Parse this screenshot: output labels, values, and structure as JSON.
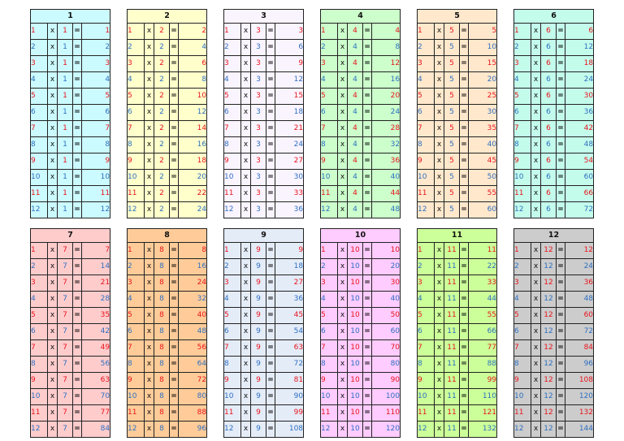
{
  "tables": [
    {
      "title": "1",
      "color": "#ccfbff",
      "rows": [
        [
          "1",
          "x",
          "1",
          "=",
          "1"
        ],
        [
          "2",
          "x",
          "1",
          "=",
          "2"
        ],
        [
          "3",
          "x",
          "1",
          "=",
          "3"
        ],
        [
          "4",
          "x",
          "1",
          "=",
          "4"
        ],
        [
          "5",
          "x",
          "1",
          "=",
          "5"
        ],
        [
          "6",
          "x",
          "1",
          "=",
          "6"
        ],
        [
          "7",
          "x",
          "1",
          "=",
          "7"
        ],
        [
          "8",
          "x",
          "1",
          "=",
          "8"
        ],
        [
          "9",
          "x",
          "1",
          "=",
          "9"
        ],
        [
          "10",
          "x",
          "1",
          "=",
          "10"
        ],
        [
          "11",
          "x",
          "1",
          "=",
          "11"
        ],
        [
          "12",
          "x",
          "1",
          "=",
          "12"
        ]
      ]
    },
    {
      "title": "2",
      "color": "#ffffcc",
      "rows": [
        [
          "1",
          "x",
          "2",
          "=",
          "2"
        ],
        [
          "2",
          "x",
          "2",
          "=",
          "4"
        ],
        [
          "3",
          "x",
          "2",
          "=",
          "6"
        ],
        [
          "4",
          "x",
          "2",
          "=",
          "8"
        ],
        [
          "5",
          "x",
          "2",
          "=",
          "10"
        ],
        [
          "6",
          "x",
          "2",
          "=",
          "12"
        ],
        [
          "7",
          "x",
          "2",
          "=",
          "14"
        ],
        [
          "8",
          "x",
          "2",
          "=",
          "16"
        ],
        [
          "9",
          "x",
          "2",
          "=",
          "18"
        ],
        [
          "10",
          "x",
          "2",
          "=",
          "20"
        ],
        [
          "11",
          "x",
          "2",
          "=",
          "22"
        ],
        [
          "12",
          "x",
          "2",
          "=",
          "24"
        ]
      ]
    },
    {
      "title": "3",
      "color": "#faf4ff",
      "rows": [
        [
          "1",
          "x",
          "3",
          "=",
          "3"
        ],
        [
          "2",
          "x",
          "3",
          "=",
          "6"
        ],
        [
          "3",
          "x",
          "3",
          "=",
          "9"
        ],
        [
          "4",
          "x",
          "3",
          "=",
          "12"
        ],
        [
          "5",
          "x",
          "3",
          "=",
          "15"
        ],
        [
          "6",
          "x",
          "3",
          "=",
          "18"
        ],
        [
          "7",
          "x",
          "3",
          "=",
          "21"
        ],
        [
          "8",
          "x",
          "3",
          "=",
          "24"
        ],
        [
          "9",
          "x",
          "3",
          "=",
          "27"
        ],
        [
          "10",
          "x",
          "3",
          "=",
          "30"
        ],
        [
          "11",
          "x",
          "3",
          "=",
          "33"
        ],
        [
          "12",
          "x",
          "3",
          "=",
          "36"
        ]
      ]
    },
    {
      "title": "4",
      "color": "#ccffcc",
      "rows": [
        [
          "1",
          "x",
          "4",
          "=",
          "4"
        ],
        [
          "2",
          "x",
          "4",
          "=",
          "8"
        ],
        [
          "3",
          "x",
          "4",
          "=",
          "12"
        ],
        [
          "4",
          "x",
          "4",
          "=",
          "16"
        ],
        [
          "5",
          "x",
          "4",
          "=",
          "20"
        ],
        [
          "6",
          "x",
          "4",
          "=",
          "24"
        ],
        [
          "7",
          "x",
          "4",
          "=",
          "28"
        ],
        [
          "8",
          "x",
          "4",
          "=",
          "32"
        ],
        [
          "9",
          "x",
          "4",
          "=",
          "36"
        ],
        [
          "10",
          "x",
          "4",
          "=",
          "40"
        ],
        [
          "11",
          "x",
          "4",
          "=",
          "44"
        ],
        [
          "12",
          "x",
          "4",
          "=",
          "48"
        ]
      ]
    },
    {
      "title": "5",
      "color": "#ffe8cc",
      "rows": [
        [
          "1",
          "x",
          "5",
          "=",
          "5"
        ],
        [
          "2",
          "x",
          "5",
          "=",
          "10"
        ],
        [
          "3",
          "x",
          "5",
          "=",
          "15"
        ],
        [
          "4",
          "x",
          "5",
          "=",
          "20"
        ],
        [
          "5",
          "x",
          "5",
          "=",
          "25"
        ],
        [
          "6",
          "x",
          "5",
          "=",
          "30"
        ],
        [
          "7",
          "x",
          "5",
          "=",
          "35"
        ],
        [
          "8",
          "x",
          "5",
          "=",
          "40"
        ],
        [
          "9",
          "x",
          "5",
          "=",
          "45"
        ],
        [
          "10",
          "x",
          "5",
          "=",
          "50"
        ],
        [
          "11",
          "x",
          "5",
          "=",
          "55"
        ],
        [
          "12",
          "x",
          "5",
          "=",
          "60"
        ]
      ]
    },
    {
      "title": "6",
      "color": "#c4fcec",
      "rows": [
        [
          "1",
          "x",
          "6",
          "=",
          "6"
        ],
        [
          "2",
          "x",
          "6",
          "=",
          "12"
        ],
        [
          "3",
          "x",
          "6",
          "=",
          "18"
        ],
        [
          "4",
          "x",
          "6",
          "=",
          "24"
        ],
        [
          "5",
          "x",
          "6",
          "=",
          "30"
        ],
        [
          "6",
          "x",
          "6",
          "=",
          "36"
        ],
        [
          "7",
          "x",
          "6",
          "=",
          "42"
        ],
        [
          "8",
          "x",
          "6",
          "=",
          "48"
        ],
        [
          "9",
          "x",
          "6",
          "=",
          "54"
        ],
        [
          "10",
          "x",
          "6",
          "=",
          "60"
        ],
        [
          "11",
          "x",
          "6",
          "=",
          "66"
        ],
        [
          "12",
          "x",
          "6",
          "=",
          "72"
        ]
      ]
    },
    {
      "title": "7",
      "color": "#ffcccc",
      "rows": [
        [
          "1",
          "x",
          "7",
          "=",
          "7"
        ],
        [
          "2",
          "x",
          "7",
          "=",
          "14"
        ],
        [
          "3",
          "x",
          "7",
          "=",
          "21"
        ],
        [
          "4",
          "x",
          "7",
          "=",
          "28"
        ],
        [
          "5",
          "x",
          "7",
          "=",
          "35"
        ],
        [
          "6",
          "x",
          "7",
          "=",
          "42"
        ],
        [
          "7",
          "x",
          "7",
          "=",
          "49"
        ],
        [
          "8",
          "x",
          "7",
          "=",
          "56"
        ],
        [
          "9",
          "x",
          "7",
          "=",
          "63"
        ],
        [
          "10",
          "x",
          "7",
          "=",
          "70"
        ],
        [
          "11",
          "x",
          "7",
          "=",
          "77"
        ],
        [
          "12",
          "x",
          "7",
          "=",
          "84"
        ]
      ]
    },
    {
      "title": "8",
      "color": "#ffcc99",
      "rows": [
        [
          "1",
          "x",
          "8",
          "=",
          "8"
        ],
        [
          "2",
          "x",
          "8",
          "=",
          "16"
        ],
        [
          "3",
          "x",
          "8",
          "=",
          "24"
        ],
        [
          "4",
          "x",
          "8",
          "=",
          "32"
        ],
        [
          "5",
          "x",
          "8",
          "=",
          "40"
        ],
        [
          "6",
          "x",
          "8",
          "=",
          "48"
        ],
        [
          "7",
          "x",
          "8",
          "=",
          "56"
        ],
        [
          "8",
          "x",
          "8",
          "=",
          "64"
        ],
        [
          "9",
          "x",
          "8",
          "=",
          "72"
        ],
        [
          "10",
          "x",
          "8",
          "=",
          "80"
        ],
        [
          "11",
          "x",
          "8",
          "=",
          "88"
        ],
        [
          "12",
          "x",
          "8",
          "=",
          "96"
        ]
      ]
    },
    {
      "title": "9",
      "color": "#e4ecf8",
      "rows": [
        [
          "1",
          "x",
          "9",
          "=",
          "9"
        ],
        [
          "2",
          "x",
          "9",
          "=",
          "18"
        ],
        [
          "3",
          "x",
          "9",
          "=",
          "27"
        ],
        [
          "4",
          "x",
          "9",
          "=",
          "36"
        ],
        [
          "5",
          "x",
          "9",
          "=",
          "45"
        ],
        [
          "6",
          "x",
          "9",
          "=",
          "54"
        ],
        [
          "7",
          "x",
          "9",
          "=",
          "63"
        ],
        [
          "8",
          "x",
          "9",
          "=",
          "72"
        ],
        [
          "9",
          "x",
          "9",
          "=",
          "81"
        ],
        [
          "10",
          "x",
          "9",
          "=",
          "90"
        ],
        [
          "11",
          "x",
          "9",
          "=",
          "99"
        ],
        [
          "12",
          "x",
          "9",
          "=",
          "108"
        ]
      ]
    },
    {
      "title": "10",
      "color": "#ffccff",
      "rows": [
        [
          "1",
          "x",
          "10",
          "=",
          "10"
        ],
        [
          "2",
          "x",
          "10",
          "=",
          "20"
        ],
        [
          "3",
          "x",
          "10",
          "=",
          "30"
        ],
        [
          "4",
          "x",
          "10",
          "=",
          "40"
        ],
        [
          "5",
          "x",
          "10",
          "=",
          "50"
        ],
        [
          "6",
          "x",
          "10",
          "=",
          "60"
        ],
        [
          "7",
          "x",
          "10",
          "=",
          "70"
        ],
        [
          "8",
          "x",
          "10",
          "=",
          "80"
        ],
        [
          "9",
          "x",
          "10",
          "=",
          "90"
        ],
        [
          "10",
          "x",
          "10",
          "=",
          "100"
        ],
        [
          "11",
          "x",
          "10",
          "=",
          "110"
        ],
        [
          "12",
          "x",
          "10",
          "=",
          "120"
        ]
      ]
    },
    {
      "title": "11",
      "color": "#ccff99",
      "rows": [
        [
          "1",
          "x",
          "11",
          "=",
          "11"
        ],
        [
          "2",
          "x",
          "11",
          "=",
          "22"
        ],
        [
          "3",
          "x",
          "11",
          "=",
          "33"
        ],
        [
          "4",
          "x",
          "11",
          "=",
          "44"
        ],
        [
          "5",
          "x",
          "11",
          "=",
          "55"
        ],
        [
          "6",
          "x",
          "11",
          "=",
          "66"
        ],
        [
          "7",
          "x",
          "11",
          "=",
          "77"
        ],
        [
          "8",
          "x",
          "11",
          "=",
          "88"
        ],
        [
          "9",
          "x",
          "11",
          "=",
          "99"
        ],
        [
          "10",
          "x",
          "11",
          "=",
          "110"
        ],
        [
          "11",
          "x",
          "11",
          "=",
          "121"
        ],
        [
          "12",
          "x",
          "11",
          "=",
          "132"
        ]
      ]
    },
    {
      "title": "12",
      "color": "#cccccc",
      "rows": [
        [
          "1",
          "x",
          "12",
          "=",
          "12"
        ],
        [
          "2",
          "x",
          "12",
          "=",
          "24"
        ],
        [
          "3",
          "x",
          "12",
          "=",
          "36"
        ],
        [
          "4",
          "x",
          "12",
          "=",
          "48"
        ],
        [
          "5",
          "x",
          "12",
          "=",
          "60"
        ],
        [
          "6",
          "x",
          "12",
          "=",
          "72"
        ],
        [
          "7",
          "x",
          "12",
          "=",
          "84"
        ],
        [
          "8",
          "x",
          "12",
          "=",
          "96"
        ],
        [
          "9",
          "x",
          "12",
          "=",
          "108"
        ],
        [
          "10",
          "x",
          "12",
          "=",
          "120"
        ],
        [
          "11",
          "x",
          "12",
          "=",
          "132"
        ],
        [
          "12",
          "x",
          "12",
          "=",
          "144"
        ]
      ]
    }
  ],
  "colors": {
    "odd_row_text": "#e8141c",
    "even_row_text": "#2e6fc0",
    "border": "#222222"
  }
}
